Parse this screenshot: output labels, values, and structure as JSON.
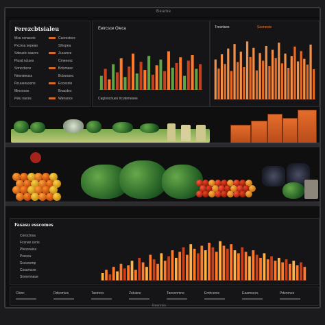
{
  "window": {
    "title": "Beame"
  },
  "panel_top_left": {
    "title": "Ferezcbtsialeu",
    "rows": [
      {
        "a": "Mxa ocnaceis",
        "b": "Cacrestocc"
      },
      {
        "a": "Pxcnsa sepeao",
        "b": "Slhopea"
      },
      {
        "a": "Sdeuelc saaccs",
        "b": "Zuuunce"
      },
      {
        "a": "Piusd nctses",
        "b": "Cmeeesc"
      },
      {
        "a": "Snnccbcce",
        "b": "Bclsmeec"
      },
      {
        "a": "Nesnieeuss",
        "b": "Bcisessec"
      },
      {
        "a": "Rcuueeusons",
        "b": "Eccesnie"
      },
      {
        "a": "Mmscese",
        "b": "Bnacdes"
      },
      {
        "a": "Peiu naces",
        "b": "Wanaoce"
      }
    ]
  },
  "panel_top_middle": {
    "title": "Eetrcsce Oleca",
    "footer": "Cagioncnues ricutemesee"
  },
  "panel_top_right": {
    "title": "Tresnlses",
    "tag": "Seeneste"
  },
  "panel_bottom": {
    "title": "Fasasu esscomes",
    "rows": [
      "Ceroctnsa",
      "Fcsnan cerio",
      "Plsocoaica",
      "Pssceu",
      "Scsosomp",
      "Cosumcse",
      "Srsnennaue"
    ]
  },
  "bottom_labels": [
    "Cbinc",
    "Rdsomies",
    "Tasinrns",
    "Zsbaine",
    "Taosonmne",
    "Emhcenie",
    "Eaamoecs",
    "Pdenmee"
  ],
  "footer_text": "Reennes",
  "colors": {
    "accent": "#ff7b2b",
    "background": "#0f0f10",
    "green": "#5fa545"
  },
  "chart_data": [
    {
      "type": "bar",
      "title": "Eetrcsce Oleca",
      "series": [
        {
          "values": [
            12,
            18,
            9,
            22,
            15,
            27,
            11,
            20,
            31,
            14,
            24,
            17,
            29,
            13,
            21,
            26,
            16,
            33,
            19,
            23,
            28,
            12,
            25,
            30,
            18,
            22
          ]
        }
      ],
      "ylim": [
        0,
        40
      ]
    },
    {
      "type": "bar",
      "title": "Tresnlses",
      "series": [
        {
          "values": [
            62,
            48,
            70,
            55,
            79,
            44,
            86,
            58,
            74,
            50,
            90,
            66,
            80,
            45,
            72,
            60,
            83,
            52,
            77,
            64,
            88,
            56,
            71,
            49,
            67,
            82,
            59,
            75,
            63,
            54,
            85,
            47
          ]
        }
      ],
      "ylim": [
        0,
        100
      ]
    },
    {
      "type": "bar",
      "title": "Fasasu esscomes",
      "series": [
        {
          "values": [
            10,
            14,
            8,
            18,
            12,
            22,
            16,
            20,
            26,
            14,
            30,
            24,
            18,
            34,
            28,
            22,
            36,
            26,
            32,
            40,
            30,
            38,
            44,
            34,
            48,
            42,
            36,
            46,
            40,
            50,
            44,
            38,
            52,
            46,
            42,
            48,
            40,
            36,
            44,
            38,
            32,
            40,
            34,
            30,
            36,
            28,
            32,
            26,
            30,
            24,
            28,
            22,
            26,
            20,
            24,
            18
          ]
        }
      ],
      "ylim": [
        0,
        60
      ]
    }
  ]
}
